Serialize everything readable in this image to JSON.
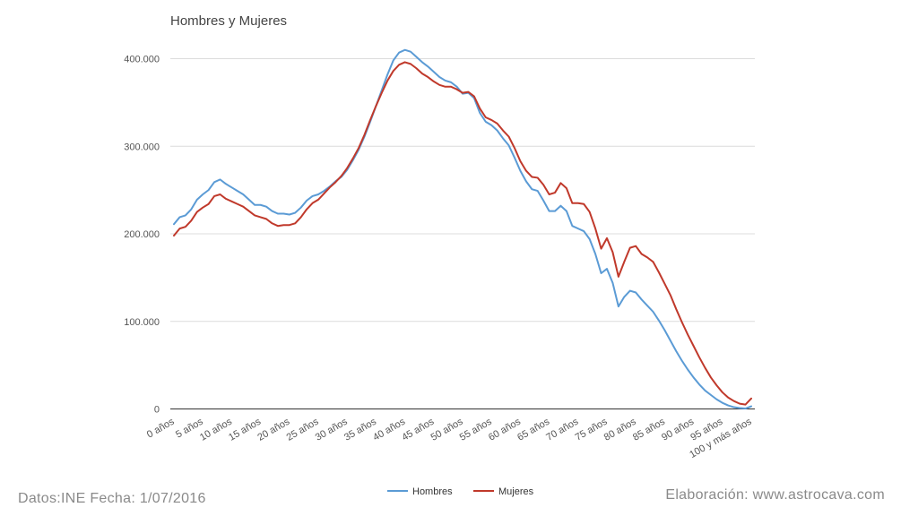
{
  "chart_data": {
    "type": "line",
    "title": "Hombres y Mujeres",
    "xlabel": "",
    "ylabel": "",
    "ylim": [
      0,
      400000
    ],
    "ytick_values": [
      0,
      100000,
      200000,
      300000,
      400000
    ],
    "yticks": [
      "0",
      "100.000",
      "200.000",
      "300.000",
      "400.000"
    ],
    "x_range": [
      0,
      100
    ],
    "x_tick_values": [
      0,
      5,
      10,
      15,
      20,
      25,
      30,
      35,
      40,
      45,
      50,
      55,
      60,
      65,
      70,
      75,
      80,
      85,
      90,
      95,
      100
    ],
    "xticks": [
      "0 años",
      "5 años",
      "10 años",
      "15 años",
      "20 años",
      "25 años",
      "30 años",
      "35 años",
      "40 años",
      "45 años",
      "50 años",
      "55 años",
      "60 años",
      "65 años",
      "70 años",
      "75 años",
      "80 años",
      "85 años",
      "90 años",
      "95 años",
      "100 y más años"
    ],
    "grid": true,
    "legend_position": "bottom",
    "series": [
      {
        "name": "Hombres",
        "color": "#5b9bd5",
        "points": [
          [
            0,
            211000
          ],
          [
            1,
            219000
          ],
          [
            2,
            221000
          ],
          [
            3,
            228000
          ],
          [
            4,
            239000
          ],
          [
            5,
            245000
          ],
          [
            6,
            250000
          ],
          [
            7,
            259000
          ],
          [
            8,
            262000
          ],
          [
            9,
            257000
          ],
          [
            10,
            253000
          ],
          [
            11,
            249000
          ],
          [
            12,
            245000
          ],
          [
            13,
            239000
          ],
          [
            14,
            233000
          ],
          [
            15,
            233000
          ],
          [
            16,
            231000
          ],
          [
            17,
            226000
          ],
          [
            18,
            223000
          ],
          [
            19,
            223000
          ],
          [
            20,
            222000
          ],
          [
            21,
            224000
          ],
          [
            22,
            230000
          ],
          [
            23,
            238000
          ],
          [
            24,
            243000
          ],
          [
            25,
            245000
          ],
          [
            26,
            249000
          ],
          [
            27,
            254000
          ],
          [
            28,
            260000
          ],
          [
            29,
            265000
          ],
          [
            30,
            273000
          ],
          [
            31,
            284000
          ],
          [
            32,
            296000
          ],
          [
            33,
            311000
          ],
          [
            34,
            328000
          ],
          [
            35,
            346000
          ],
          [
            36,
            364000
          ],
          [
            37,
            382000
          ],
          [
            38,
            398000
          ],
          [
            39,
            407000
          ],
          [
            40,
            410000
          ],
          [
            41,
            408000
          ],
          [
            42,
            402000
          ],
          [
            43,
            396000
          ],
          [
            44,
            391000
          ],
          [
            45,
            385000
          ],
          [
            46,
            379000
          ],
          [
            47,
            375000
          ],
          [
            48,
            373000
          ],
          [
            49,
            368000
          ],
          [
            50,
            360000
          ],
          [
            51,
            361000
          ],
          [
            52,
            355000
          ],
          [
            53,
            338000
          ],
          [
            54,
            328000
          ],
          [
            55,
            324000
          ],
          [
            56,
            318000
          ],
          [
            57,
            309000
          ],
          [
            58,
            301000
          ],
          [
            59,
            287000
          ],
          [
            60,
            272000
          ],
          [
            61,
            260000
          ],
          [
            62,
            251000
          ],
          [
            63,
            249000
          ],
          [
            64,
            238000
          ],
          [
            65,
            226000
          ],
          [
            66,
            226000
          ],
          [
            67,
            232000
          ],
          [
            68,
            226000
          ],
          [
            69,
            209000
          ],
          [
            70,
            206000
          ],
          [
            71,
            203000
          ],
          [
            72,
            194000
          ],
          [
            73,
            177000
          ],
          [
            74,
            155000
          ],
          [
            75,
            160000
          ],
          [
            76,
            144000
          ],
          [
            77,
            117000
          ],
          [
            78,
            128000
          ],
          [
            79,
            135000
          ],
          [
            80,
            133000
          ],
          [
            81,
            125000
          ],
          [
            82,
            118000
          ],
          [
            83,
            111000
          ],
          [
            84,
            101000
          ],
          [
            85,
            90000
          ],
          [
            86,
            78000
          ],
          [
            87,
            66000
          ],
          [
            88,
            55000
          ],
          [
            89,
            45000
          ],
          [
            90,
            36000
          ],
          [
            91,
            28000
          ],
          [
            92,
            21000
          ],
          [
            93,
            16000
          ],
          [
            94,
            11000
          ],
          [
            95,
            7000
          ],
          [
            96,
            4000
          ],
          [
            97,
            2000
          ],
          [
            98,
            1000
          ],
          [
            99,
            500
          ],
          [
            100,
            3000
          ]
        ]
      },
      {
        "name": "Mujeres",
        "color": "#c0392b",
        "points": [
          [
            0,
            198000
          ],
          [
            1,
            206000
          ],
          [
            2,
            208000
          ],
          [
            3,
            215000
          ],
          [
            4,
            225000
          ],
          [
            5,
            230000
          ],
          [
            6,
            234000
          ],
          [
            7,
            243000
          ],
          [
            8,
            245000
          ],
          [
            9,
            240000
          ],
          [
            10,
            237000
          ],
          [
            11,
            234000
          ],
          [
            12,
            231000
          ],
          [
            13,
            226000
          ],
          [
            14,
            221000
          ],
          [
            15,
            219000
          ],
          [
            16,
            217000
          ],
          [
            17,
            212000
          ],
          [
            18,
            209000
          ],
          [
            19,
            210000
          ],
          [
            20,
            210000
          ],
          [
            21,
            212000
          ],
          [
            22,
            219000
          ],
          [
            23,
            228000
          ],
          [
            24,
            235000
          ],
          [
            25,
            239000
          ],
          [
            26,
            246000
          ],
          [
            27,
            253000
          ],
          [
            28,
            259000
          ],
          [
            29,
            266000
          ],
          [
            30,
            275000
          ],
          [
            31,
            286000
          ],
          [
            32,
            298000
          ],
          [
            33,
            313000
          ],
          [
            34,
            330000
          ],
          [
            35,
            346000
          ],
          [
            36,
            361000
          ],
          [
            37,
            375000
          ],
          [
            38,
            386000
          ],
          [
            39,
            393000
          ],
          [
            40,
            396000
          ],
          [
            41,
            394000
          ],
          [
            42,
            389000
          ],
          [
            43,
            383000
          ],
          [
            44,
            379000
          ],
          [
            45,
            374000
          ],
          [
            46,
            370000
          ],
          [
            47,
            368000
          ],
          [
            48,
            368000
          ],
          [
            49,
            365000
          ],
          [
            50,
            361000
          ],
          [
            51,
            362000
          ],
          [
            52,
            357000
          ],
          [
            53,
            343000
          ],
          [
            54,
            333000
          ],
          [
            55,
            330000
          ],
          [
            56,
            326000
          ],
          [
            57,
            318000
          ],
          [
            58,
            311000
          ],
          [
            59,
            298000
          ],
          [
            60,
            283000
          ],
          [
            61,
            272000
          ],
          [
            62,
            265000
          ],
          [
            63,
            264000
          ],
          [
            64,
            256000
          ],
          [
            65,
            245000
          ],
          [
            66,
            247000
          ],
          [
            67,
            258000
          ],
          [
            68,
            252000
          ],
          [
            69,
            235000
          ],
          [
            70,
            235000
          ],
          [
            71,
            234000
          ],
          [
            72,
            225000
          ],
          [
            73,
            206000
          ],
          [
            74,
            183000
          ],
          [
            75,
            195000
          ],
          [
            76,
            179000
          ],
          [
            77,
            151000
          ],
          [
            78,
            168000
          ],
          [
            79,
            184000
          ],
          [
            80,
            186000
          ],
          [
            81,
            177000
          ],
          [
            82,
            173000
          ],
          [
            83,
            168000
          ],
          [
            84,
            156000
          ],
          [
            85,
            143000
          ],
          [
            86,
            130000
          ],
          [
            87,
            114000
          ],
          [
            88,
            99000
          ],
          [
            89,
            85000
          ],
          [
            90,
            72000
          ],
          [
            91,
            59000
          ],
          [
            92,
            47000
          ],
          [
            93,
            36000
          ],
          [
            94,
            27000
          ],
          [
            95,
            19000
          ],
          [
            96,
            13000
          ],
          [
            97,
            9000
          ],
          [
            98,
            6000
          ],
          [
            99,
            5000
          ],
          [
            100,
            12000
          ]
        ]
      }
    ]
  },
  "footer": {
    "source": "Datos:INE Fecha: 1/07/2016",
    "credit": "Elaboración: www.astrocava.com"
  }
}
